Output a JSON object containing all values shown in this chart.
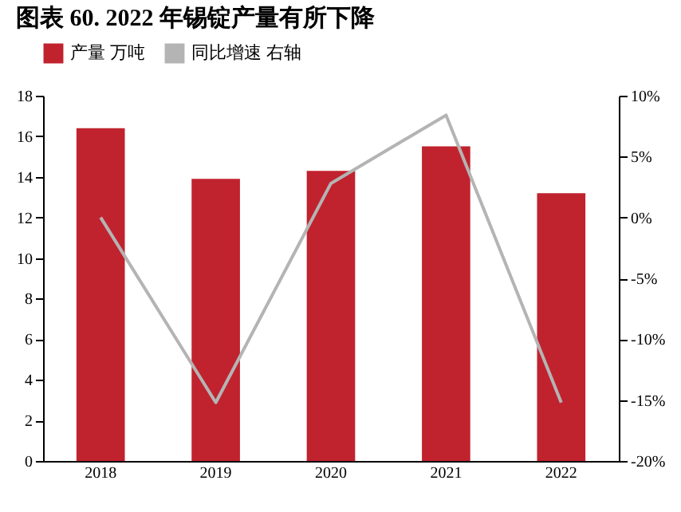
{
  "chart_data": {
    "type": "bar",
    "title": "图表 60. 2022 年锡锭产量有所下降",
    "categories": [
      "2018",
      "2019",
      "2020",
      "2021",
      "2022"
    ],
    "series": [
      {
        "name": "产量 万吨",
        "color": "#c0232e",
        "values": [
          16.4,
          13.9,
          14.3,
          15.5,
          13.2
        ]
      },
      {
        "name": "同比增速 右轴",
        "type": "line",
        "axis": "y2",
        "color": "#b4b4b4",
        "values": [
          0,
          -15.2,
          2.8,
          8.4,
          -15.2
        ]
      }
    ],
    "ylim": [
      0,
      18
    ],
    "yticks": [
      0,
      2,
      4,
      6,
      8,
      10,
      12,
      14,
      16,
      18
    ],
    "y2lim": [
      -20,
      10
    ],
    "y2ticks": [
      {
        "value": -20,
        "label": "-20%"
      },
      {
        "value": -15,
        "label": "-15%"
      },
      {
        "value": -10,
        "label": "-10%"
      },
      {
        "value": -5,
        "label": "-5%"
      },
      {
        "value": 0,
        "label": "0%"
      },
      {
        "value": 5,
        "label": "5%"
      },
      {
        "value": 10,
        "label": "10%"
      }
    ],
    "grid": false,
    "legend": "top"
  }
}
